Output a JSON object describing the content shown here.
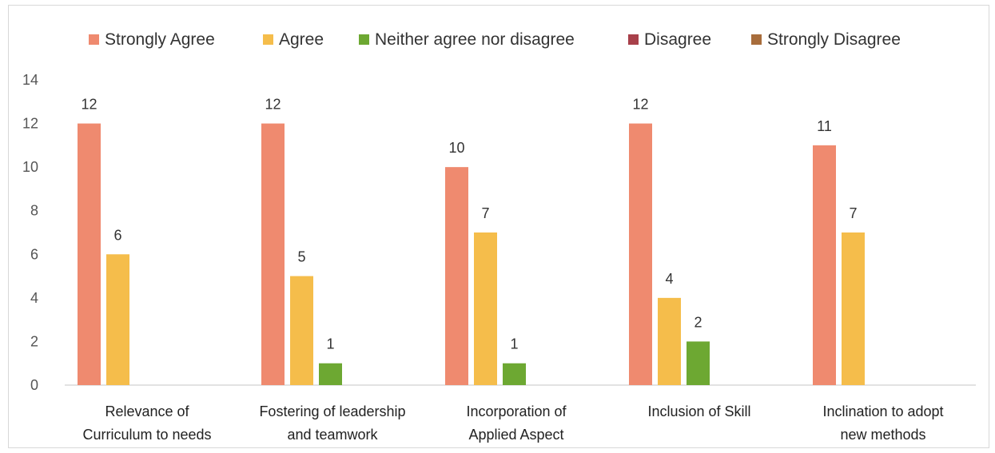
{
  "chart_data": {
    "type": "bar",
    "categories": [
      [
        "Relevance of",
        "Curriculum to needs"
      ],
      [
        "Fostering of leadership",
        "and teamwork"
      ],
      [
        "Incorporation of",
        "Applied Aspect"
      ],
      [
        "Inclusion of Skill"
      ],
      [
        "Inclination to adopt",
        "new methods"
      ]
    ],
    "series": [
      {
        "name": "Strongly Agree",
        "color": "#ef8a6f",
        "values": [
          12,
          12,
          10,
          12,
          11
        ]
      },
      {
        "name": "Agree",
        "color": "#f5bd4b",
        "values": [
          6,
          5,
          7,
          4,
          7
        ]
      },
      {
        "name": "Neither agree nor disagree",
        "color": "#6da832",
        "values": [
          0,
          1,
          1,
          2,
          0
        ]
      },
      {
        "name": "Disagree",
        "color": "#a8404a",
        "values": [
          0,
          0,
          0,
          0,
          0
        ]
      },
      {
        "name": "Strongly Disagree",
        "color": "#a86d3c",
        "values": [
          0,
          0,
          0,
          0,
          0
        ]
      }
    ],
    "yticks": [
      "0",
      "2",
      "4",
      "6",
      "8",
      "10",
      "12",
      "14"
    ],
    "ylim": [
      0,
      14
    ],
    "grid": false,
    "legend_position": "top"
  }
}
